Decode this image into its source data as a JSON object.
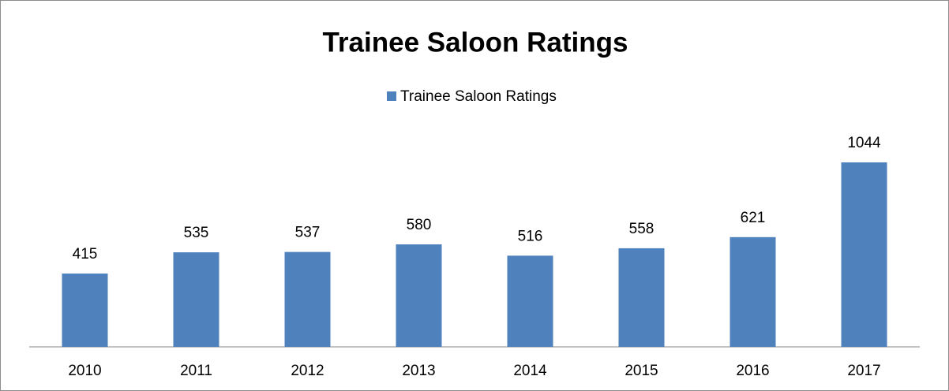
{
  "chart_data": {
    "type": "bar",
    "title": "Trainee Saloon Ratings",
    "categories": [
      "2010",
      "2011",
      "2012",
      "2013",
      "2014",
      "2015",
      "2016",
      "2017"
    ],
    "series": [
      {
        "name": "Trainee Saloon Ratings",
        "color": "#4f81bd",
        "values": [
          415,
          535,
          537,
          580,
          516,
          558,
          621,
          1044
        ]
      }
    ],
    "ylim": [
      0,
      1200
    ],
    "legend": "top"
  }
}
